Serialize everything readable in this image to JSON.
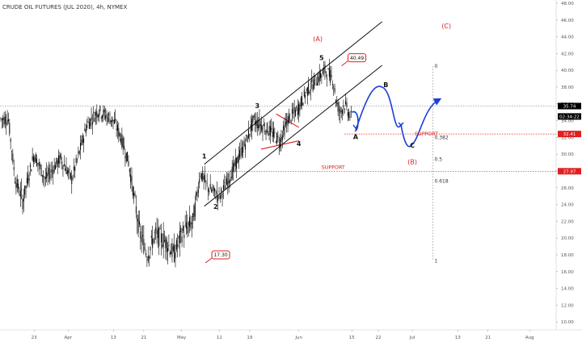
{
  "header": {
    "title": "CRUDE OIL FUTURES (JUL 2020), 4h, NYMEX"
  },
  "chart_data": {
    "type": "candlestick",
    "title": "CRUDE OIL FUTURES (JUL 2020), 4h, NYMEX",
    "ylim": [
      10,
      48
    ],
    "y_ticks": [
      "48.00",
      "46.00",
      "44.00",
      "42.00",
      "40.00",
      "38.00",
      "36.00",
      "34.00",
      "32.00",
      "30.00",
      "28.00",
      "26.00",
      "24.00",
      "22.00",
      "20.00",
      "18.00",
      "16.00",
      "14.00",
      "12.00",
      "10.00"
    ],
    "x_ticks": [
      "23",
      "Apr",
      "13",
      "21",
      "May",
      "11",
      "19",
      "Jun",
      "15",
      "22",
      "Jul",
      "13",
      "21",
      "Aug"
    ],
    "price_path": [
      {
        "date": "Mar 16",
        "price": 35.0
      },
      {
        "date": "Mar 18",
        "price": 27.0
      },
      {
        "date": "Mar 20",
        "price": 24.5
      },
      {
        "date": "Mar 23",
        "price": 30.0
      },
      {
        "date": "Mar 26",
        "price": 27.0
      },
      {
        "date": "Mar 30",
        "price": 29.5
      },
      {
        "date": "Apr 2",
        "price": 27.0
      },
      {
        "date": "Apr 6",
        "price": 33.5
      },
      {
        "date": "Apr 9",
        "price": 35.2
      },
      {
        "date": "Apr 13",
        "price": 34.0
      },
      {
        "date": "Apr 15",
        "price": 32.0
      },
      {
        "date": "Apr 17",
        "price": 29.0
      },
      {
        "date": "Apr 20",
        "price": 20.5
      },
      {
        "date": "Apr 22",
        "price": 18.0
      },
      {
        "date": "Apr 24",
        "price": 20.5
      },
      {
        "date": "Apr 27",
        "price": 19.5
      },
      {
        "date": "Apr 29",
        "price": 18.0
      },
      {
        "date": "May 1",
        "price": 20.5
      },
      {
        "date": "May 4",
        "price": 22.0
      },
      {
        "date": "May 6",
        "price": 27.8
      },
      {
        "date": "May 8",
        "price": 26.0
      },
      {
        "date": "May 11",
        "price": 25.0
      },
      {
        "date": "May 13",
        "price": 26.5
      },
      {
        "date": "May 15",
        "price": 28.5
      },
      {
        "date": "May 18",
        "price": 31.5
      },
      {
        "date": "May 20",
        "price": 34.0
      },
      {
        "date": "May 22",
        "price": 33.5
      },
      {
        "date": "May 25",
        "price": 32.5
      },
      {
        "date": "May 27",
        "price": 31.5
      },
      {
        "date": "May 29",
        "price": 34.0
      },
      {
        "date": "Jun 1",
        "price": 35.5
      },
      {
        "date": "Jun 3",
        "price": 37.5
      },
      {
        "date": "Jun 5",
        "price": 38.5
      },
      {
        "date": "Jun 8",
        "price": 40.0
      },
      {
        "date": "Jun 10",
        "price": 39.0
      },
      {
        "date": "Jun 11",
        "price": 36.0
      },
      {
        "date": "Jun 12",
        "price": 35.0
      },
      {
        "date": "Jun 13",
        "price": 36.0
      },
      {
        "date": "Jun 15",
        "price": 34.2
      }
    ],
    "annotations": {
      "waves": [
        {
          "label": "1",
          "date": "May 7",
          "price": 29.5
        },
        {
          "label": "2",
          "date": "May 10",
          "price": 23.5
        },
        {
          "label": "3",
          "date": "May 21",
          "price": 35.5
        },
        {
          "label": "4",
          "date": "Jun 1",
          "price": 31.0
        },
        {
          "label": "5",
          "date": "Jun 7",
          "price": 41.2
        },
        {
          "label": "A",
          "date": "Jun 16",
          "price": 31.8
        },
        {
          "label": "B",
          "date": "Jun 24",
          "price": 38.0
        },
        {
          "label": "C",
          "date": "Jul 1",
          "price": 30.8
        }
      ],
      "degree_labels": [
        {
          "label": "(A)",
          "date": "Jun 6",
          "price": 43.5,
          "color": "#e02020"
        },
        {
          "label": "(B)",
          "date": "Jul 1",
          "price": 28.8,
          "color": "#e02020"
        },
        {
          "label": "(C)",
          "date": "Jul 10",
          "price": 45.0,
          "color": "#e02020"
        }
      ],
      "price_callouts": [
        {
          "label": "40.49",
          "date": "Jun 14",
          "price": 41.5
        },
        {
          "label": "17.30",
          "date": "May 9",
          "price": 18.0
        }
      ],
      "fib_levels": [
        {
          "label": "0",
          "price": 40.49
        },
        {
          "label": "0.382",
          "price": 32.0
        },
        {
          "label": "0.5",
          "price": 29.4
        },
        {
          "label": "0.618",
          "price": 26.8
        },
        {
          "label": "1",
          "price": 17.3
        }
      ],
      "support_lines": [
        {
          "label": "SUPPORT",
          "price": 32.41
        },
        {
          "label": "SUPPORT",
          "price": 27.97
        }
      ]
    },
    "price_tags": [
      {
        "label": "35.74",
        "price": 35.74,
        "bg": "#000000"
      },
      {
        "label": "02:34:22",
        "price": 34.5,
        "bg": "#000000"
      },
      {
        "label": "32.41",
        "price": 32.41,
        "bg": "#e02020"
      },
      {
        "label": "27.97",
        "price": 27.97,
        "bg": "#e02020"
      }
    ],
    "current_price": 35.74,
    "colors": {
      "accent_red": "#e02020",
      "projection": "#1b3fd6",
      "candle": "#000000"
    }
  }
}
